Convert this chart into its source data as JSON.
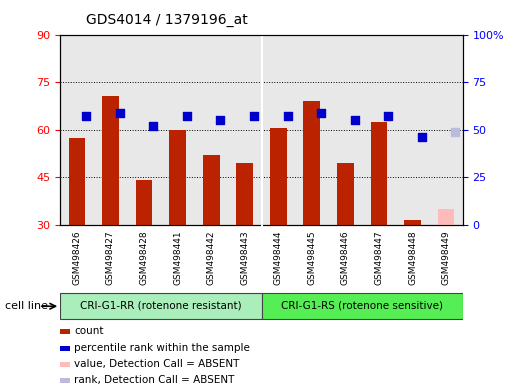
{
  "title": "GDS4014 / 1379196_at",
  "samples": [
    "GSM498426",
    "GSM498427",
    "GSM498428",
    "GSM498441",
    "GSM498442",
    "GSM498443",
    "GSM498444",
    "GSM498445",
    "GSM498446",
    "GSM498447",
    "GSM498448",
    "GSM498449"
  ],
  "count_values": [
    57.5,
    70.5,
    44.0,
    60.0,
    52.0,
    49.5,
    60.5,
    69.0,
    49.5,
    62.5,
    31.5,
    null
  ],
  "rank_values": [
    57.0,
    58.5,
    52.0,
    57.0,
    55.0,
    57.0,
    57.0,
    58.5,
    55.0,
    57.0,
    46.0,
    null
  ],
  "absent_count": [
    null,
    null,
    null,
    null,
    null,
    null,
    null,
    null,
    null,
    null,
    null,
    35.0
  ],
  "absent_rank": [
    null,
    null,
    null,
    null,
    null,
    null,
    null,
    null,
    null,
    null,
    null,
    49.0
  ],
  "ylim_left": [
    30,
    90
  ],
  "ylim_right": [
    0,
    100
  ],
  "yticks_left": [
    30,
    45,
    60,
    75,
    90
  ],
  "yticks_right": [
    0,
    25,
    50,
    75,
    100
  ],
  "bar_color": "#bb2200",
  "rank_color": "#0000cc",
  "absent_bar_color": "#ffbbbb",
  "absent_rank_color": "#bbbbdd",
  "group1_label": "CRI-G1-RR (rotenone resistant)",
  "group2_label": "CRI-G1-RS (rotenone sensitive)",
  "group1_color": "#aaeebb",
  "group2_color": "#55ee55",
  "group1_indices": [
    0,
    1,
    2,
    3,
    4,
    5
  ],
  "group2_indices": [
    6,
    7,
    8,
    9,
    10,
    11
  ],
  "cell_line_label": "cell line",
  "legend_items": [
    {
      "label": "count",
      "color": "#bb2200"
    },
    {
      "label": "percentile rank within the sample",
      "color": "#0000cc"
    },
    {
      "label": "value, Detection Call = ABSENT",
      "color": "#ffbbbb"
    },
    {
      "label": "rank, Detection Call = ABSENT",
      "color": "#bbbbdd"
    }
  ],
  "bar_width": 0.5,
  "rank_marker_size": 28,
  "background_color": "#ffffff",
  "plot_bg_color": "#e8e8e8",
  "xtick_bg_color": "#d0d0d0",
  "grid_color": "#000000"
}
